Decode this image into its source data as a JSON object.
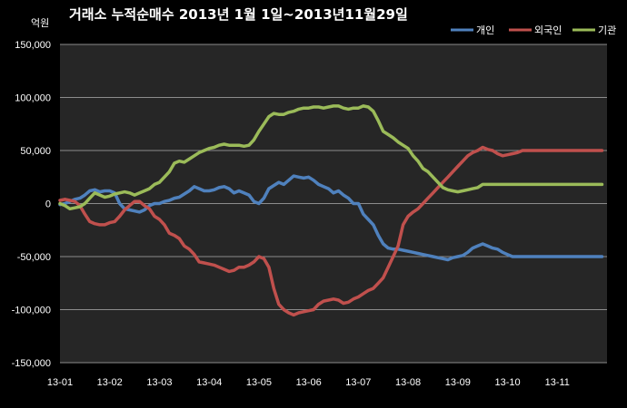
{
  "chart_data": {
    "type": "line",
    "title": "거래소 누적순매수 2013년 1월 1일~2013년11월29일",
    "unit_label": "억원",
    "ylim": [
      -150000,
      150000
    ],
    "yticks": [
      -150000,
      -100000,
      -50000,
      0,
      50000,
      100000,
      150000
    ],
    "ytick_labels": [
      "-150,000",
      "-100,000",
      "-50,000",
      "0",
      "50,000",
      "100,000",
      "150,000"
    ],
    "categories": [
      "13-01",
      "13-02",
      "13-03",
      "13-04",
      "13-05",
      "13-06",
      "13-07",
      "13-08",
      "13-09",
      "13-10",
      "13-11"
    ],
    "x_end": 11,
    "grid": "horizontal",
    "legend_position": "top-right",
    "plot_background": "#262626",
    "series": [
      {
        "name": "개인",
        "color": "#4f81bd",
        "x": [
          0,
          0.1,
          0.2,
          0.3,
          0.4,
          0.5,
          0.6,
          0.7,
          0.8,
          0.9,
          1.0,
          1.1,
          1.2,
          1.3,
          1.4,
          1.5,
          1.6,
          1.7,
          1.8,
          1.9,
          2.0,
          2.1,
          2.2,
          2.3,
          2.4,
          2.5,
          2.6,
          2.7,
          2.8,
          2.9,
          3.0,
          3.1,
          3.2,
          3.3,
          3.4,
          3.5,
          3.6,
          3.7,
          3.8,
          3.9,
          4.0,
          4.1,
          4.2,
          4.3,
          4.4,
          4.5,
          4.6,
          4.7,
          4.8,
          4.9,
          5.0,
          5.1,
          5.2,
          5.3,
          5.4,
          5.5,
          5.6,
          5.7,
          5.8,
          5.9,
          6.0,
          6.1,
          6.2,
          6.3,
          6.4,
          6.5,
          6.6,
          6.7,
          6.8,
          6.9,
          7.0,
          7.1,
          7.2,
          7.3,
          7.4,
          7.5,
          7.6,
          7.7,
          7.8,
          7.9,
          8.0,
          8.1,
          8.2,
          8.3,
          8.4,
          8.5,
          8.6,
          8.7,
          8.8,
          8.9,
          9.0,
          9.1,
          9.2,
          9.3,
          9.4,
          9.5,
          9.6,
          9.7,
          9.8,
          9.9,
          10.0,
          10.1,
          10.2,
          10.3,
          10.4,
          10.5,
          10.6,
          10.7,
          10.8,
          10.9
        ],
        "values": [
          -1000,
          0,
          2000,
          4000,
          5000,
          8000,
          12000,
          13000,
          11000,
          12000,
          12000,
          10000,
          0,
          -5000,
          -6000,
          -7000,
          -8000,
          -6000,
          -2000,
          0,
          0,
          2000,
          3000,
          5000,
          6000,
          9000,
          12000,
          16000,
          14000,
          12000,
          12000,
          13000,
          15000,
          16000,
          14000,
          10000,
          12000,
          10000,
          8000,
          2000,
          0,
          5000,
          14000,
          17000,
          20000,
          18000,
          22000,
          26000,
          25000,
          24000,
          25000,
          22000,
          18000,
          16000,
          14000,
          10000,
          12000,
          8000,
          5000,
          0,
          0,
          -10000,
          -15000,
          -20000,
          -30000,
          -38000,
          -42000,
          -43000,
          -43000,
          -44000,
          -45000,
          -46000,
          -47000,
          -48000,
          -49000,
          -50000,
          -51000,
          -52000,
          -53000,
          -51000,
          -50000,
          -49000,
          -46000,
          -42000,
          -40000,
          -38000,
          -40000,
          -42000,
          -43000,
          -46000,
          -48000,
          -50000,
          -50000,
          -50000,
          -50000,
          -50000,
          -50000,
          -50000,
          -50000,
          -50000,
          -50000,
          -50000,
          -50000,
          -50000,
          -50000,
          -50000,
          -50000,
          -50000,
          -50000,
          -50000
        ]
      },
      {
        "name": "외국인",
        "color": "#c0504d",
        "x": [
          0,
          0.1,
          0.2,
          0.3,
          0.4,
          0.5,
          0.6,
          0.7,
          0.8,
          0.9,
          1.0,
          1.1,
          1.2,
          1.3,
          1.4,
          1.5,
          1.6,
          1.7,
          1.8,
          1.9,
          2.0,
          2.1,
          2.2,
          2.3,
          2.4,
          2.5,
          2.6,
          2.7,
          2.8,
          2.9,
          3.0,
          3.1,
          3.2,
          3.3,
          3.4,
          3.5,
          3.6,
          3.7,
          3.8,
          3.9,
          4.0,
          4.1,
          4.2,
          4.3,
          4.4,
          4.5,
          4.6,
          4.7,
          4.8,
          4.9,
          5.0,
          5.1,
          5.2,
          5.3,
          5.4,
          5.5,
          5.6,
          5.7,
          5.8,
          5.9,
          6.0,
          6.1,
          6.2,
          6.3,
          6.4,
          6.5,
          6.6,
          6.7,
          6.8,
          6.9,
          7.0,
          7.1,
          7.2,
          7.3,
          7.4,
          7.5,
          7.6,
          7.7,
          7.8,
          7.9,
          8.0,
          8.1,
          8.2,
          8.3,
          8.4,
          8.5,
          8.6,
          8.7,
          8.8,
          8.9,
          9.0,
          9.1,
          9.2,
          9.3,
          9.4,
          9.5,
          9.6,
          9.7,
          9.8,
          9.9,
          10.0,
          10.1,
          10.2,
          10.3,
          10.4,
          10.5,
          10.6,
          10.7,
          10.8,
          10.9
        ],
        "values": [
          3000,
          4000,
          3000,
          2000,
          -2000,
          -10000,
          -17000,
          -19000,
          -20000,
          -20000,
          -18000,
          -17000,
          -12000,
          -6000,
          -2000,
          2000,
          2000,
          -2000,
          -5000,
          -12000,
          -15000,
          -20000,
          -28000,
          -30000,
          -33000,
          -40000,
          -43000,
          -48000,
          -55000,
          -56000,
          -57000,
          -58000,
          -60000,
          -62000,
          -64000,
          -63000,
          -60000,
          -60000,
          -58000,
          -55000,
          -50000,
          -52000,
          -60000,
          -80000,
          -95000,
          -100000,
          -103000,
          -105000,
          -103000,
          -102000,
          -101000,
          -100000,
          -95000,
          -92000,
          -91000,
          -90000,
          -91000,
          -94000,
          -93000,
          -90000,
          -88000,
          -85000,
          -82000,
          -80000,
          -75000,
          -70000,
          -60000,
          -50000,
          -40000,
          -20000,
          -12000,
          -8000,
          -5000,
          0,
          5000,
          10000,
          15000,
          20000,
          25000,
          30000,
          35000,
          40000,
          45000,
          48000,
          50000,
          53000,
          51000,
          50000,
          47000,
          45000,
          46000,
          47000,
          48000,
          50000,
          50000,
          50000,
          50000,
          50000,
          50000,
          50000,
          50000,
          50000,
          50000,
          50000,
          50000,
          50000,
          50000,
          50000,
          50000,
          50000
        ]
      },
      {
        "name": "기관",
        "color": "#9bbb59",
        "x": [
          0,
          0.1,
          0.2,
          0.3,
          0.4,
          0.5,
          0.6,
          0.7,
          0.8,
          0.9,
          1.0,
          1.1,
          1.2,
          1.3,
          1.4,
          1.5,
          1.6,
          1.7,
          1.8,
          1.9,
          2.0,
          2.1,
          2.2,
          2.3,
          2.4,
          2.5,
          2.6,
          2.7,
          2.8,
          2.9,
          3.0,
          3.1,
          3.2,
          3.3,
          3.4,
          3.5,
          3.6,
          3.7,
          3.8,
          3.9,
          4.0,
          4.1,
          4.2,
          4.3,
          4.4,
          4.5,
          4.6,
          4.7,
          4.8,
          4.9,
          5.0,
          5.1,
          5.2,
          5.3,
          5.4,
          5.5,
          5.6,
          5.7,
          5.8,
          5.9,
          6.0,
          6.1,
          6.2,
          6.3,
          6.4,
          6.5,
          6.6,
          6.7,
          6.8,
          6.9,
          7.0,
          7.1,
          7.2,
          7.3,
          7.4,
          7.5,
          7.6,
          7.7,
          7.8,
          7.9,
          8.0,
          8.1,
          8.2,
          8.3,
          8.4,
          8.5,
          8.6,
          8.7,
          8.8,
          8.9,
          9.0,
          9.1,
          9.2,
          9.3,
          9.4,
          9.5,
          9.6,
          9.7,
          9.8,
          9.9,
          10.0,
          10.1,
          10.2,
          10.3,
          10.4,
          10.5,
          10.6,
          10.7,
          10.8,
          10.9
        ],
        "values": [
          0,
          -2000,
          -5000,
          -4000,
          -3000,
          0,
          5000,
          10000,
          8000,
          6000,
          7000,
          9000,
          10000,
          11000,
          10000,
          8000,
          10000,
          12000,
          14000,
          18000,
          20000,
          25000,
          30000,
          38000,
          40000,
          39000,
          42000,
          45000,
          48000,
          50000,
          52000,
          53000,
          55000,
          56000,
          55000,
          55000,
          55000,
          54000,
          55000,
          60000,
          68000,
          75000,
          82000,
          85000,
          84000,
          84000,
          86000,
          87000,
          89000,
          90000,
          90000,
          91000,
          91000,
          90000,
          91000,
          92000,
          92000,
          90000,
          89000,
          90000,
          90000,
          92000,
          91000,
          87000,
          78000,
          68000,
          65000,
          62000,
          58000,
          55000,
          52000,
          45000,
          40000,
          33000,
          30000,
          25000,
          20000,
          15000,
          13000,
          12000,
          11000,
          12000,
          13000,
          14000,
          15000,
          18000,
          18000,
          18000,
          18000,
          18000,
          18000,
          18000,
          18000,
          18000,
          18000,
          18000,
          18000,
          18000,
          18000,
          18000,
          18000,
          18000,
          18000,
          18000,
          18000,
          18000,
          18000,
          18000,
          18000,
          18000
        ]
      }
    ]
  }
}
